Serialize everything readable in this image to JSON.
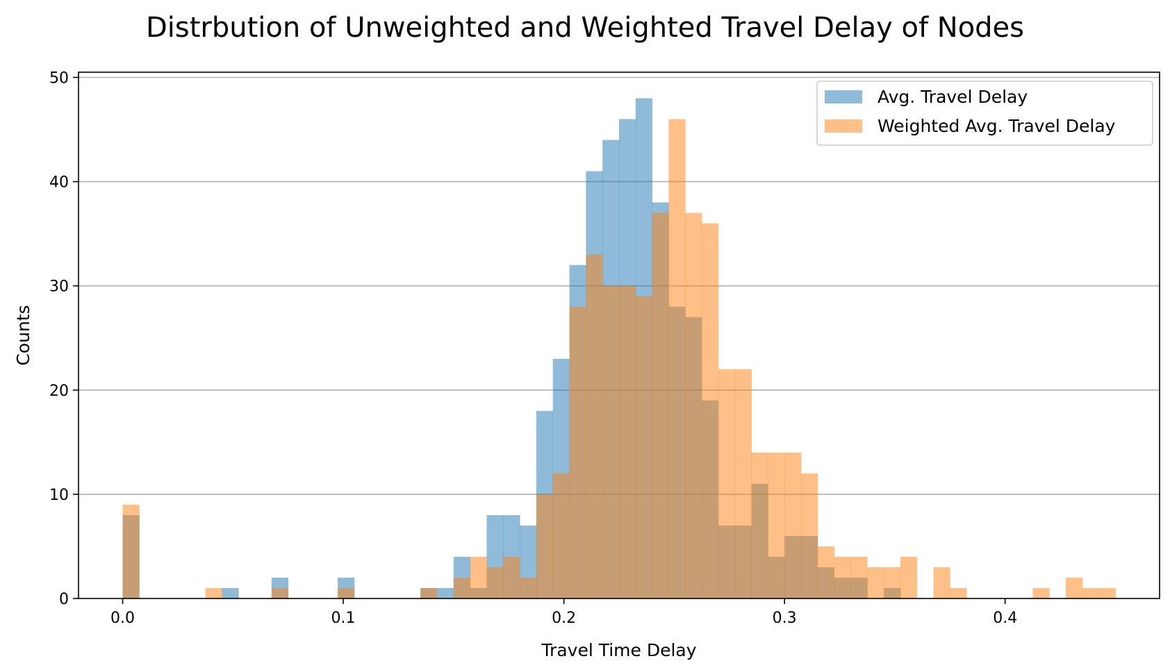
{
  "chart_data": {
    "type": "histogram",
    "title": "Distrbution of Unweighted and Weighted Travel Delay of Nodes",
    "xlabel": "Travel Time Delay",
    "ylabel": "Counts",
    "xlim": [
      -0.02,
      0.47
    ],
    "ylim": [
      0,
      50.5
    ],
    "xticks": [
      0.0,
      0.1,
      0.2,
      0.3,
      0.4
    ],
    "xtick_labels": [
      "0.0",
      "0.1",
      "0.2",
      "0.3",
      "0.4"
    ],
    "yticks": [
      0,
      10,
      20,
      30,
      40,
      50
    ],
    "ytick_labels": [
      "0",
      "10",
      "20",
      "30",
      "40",
      "50"
    ],
    "grid": "horizontal",
    "legend_position": "top-right",
    "bin_start": 0.0,
    "bin_width": 0.0075,
    "series": [
      {
        "name": "Avg. Travel Delay",
        "color": "#1f77b4",
        "opacity": 0.5,
        "counts": [
          8,
          0,
          0,
          0,
          0,
          0,
          1,
          0,
          0,
          2,
          0,
          0,
          0,
          2,
          0,
          0,
          0,
          0,
          1,
          1,
          4,
          1,
          8,
          8,
          7,
          18,
          23,
          32,
          41,
          44,
          46,
          48,
          38,
          28,
          27,
          19,
          7,
          7,
          11,
          4,
          6,
          6,
          3,
          2,
          2,
          0,
          1,
          0,
          0,
          0,
          0,
          0,
          0,
          0,
          0,
          0,
          0,
          0,
          0,
          0,
          0,
          0
        ]
      },
      {
        "name": "Weighted Avg. Travel Delay",
        "color": "#ff7f0e",
        "opacity": 0.5,
        "counts": [
          9,
          0,
          0,
          0,
          0,
          1,
          0,
          0,
          0,
          1,
          0,
          0,
          0,
          1,
          0,
          0,
          0,
          0,
          1,
          0,
          2,
          4,
          3,
          4,
          2,
          10,
          12,
          28,
          33,
          30,
          30,
          29,
          37,
          46,
          37,
          36,
          22,
          22,
          14,
          14,
          14,
          12,
          5,
          4,
          4,
          3,
          3,
          4,
          0,
          3,
          1,
          0,
          0,
          0,
          0,
          1,
          0,
          2,
          1,
          1,
          0,
          0
        ]
      }
    ]
  }
}
